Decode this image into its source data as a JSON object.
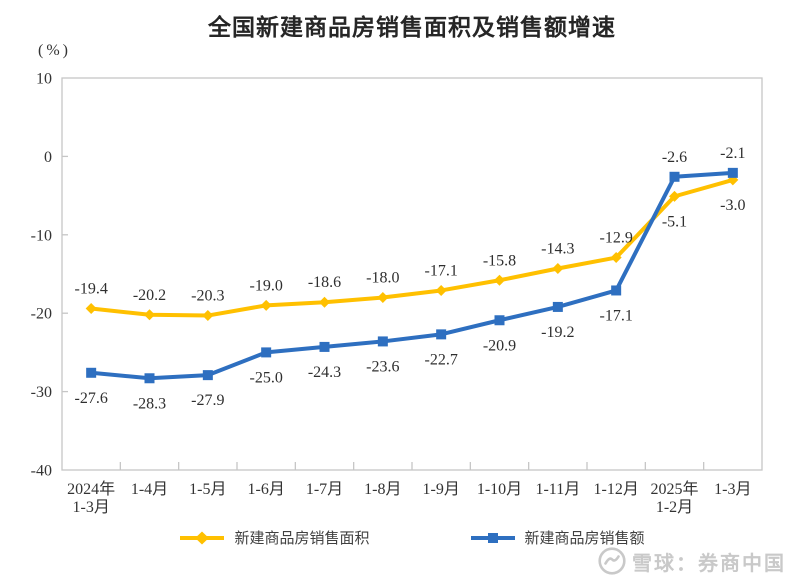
{
  "chart_data": {
    "type": "line",
    "title": "全国新建商品房销售面积及销售额增速",
    "unit_label": "(%)",
    "categories": [
      "2024年\n1-3月",
      "1-4月",
      "1-5月",
      "1-6月",
      "1-7月",
      "1-8月",
      "1-9月",
      "1-10月",
      "1-11月",
      "1-12月",
      "2025年\n1-2月",
      "1-3月"
    ],
    "series": [
      {
        "name": "新建商品房销售面积",
        "color": "#FFC000",
        "marker": "diamond",
        "values": [
          -19.4,
          -20.2,
          -20.3,
          -19.0,
          -18.6,
          -18.0,
          -17.1,
          -15.8,
          -14.3,
          -12.9,
          -5.1,
          -3.0
        ],
        "label_position": "above",
        "label_overrides": {
          "10": "below",
          "11": "below"
        }
      },
      {
        "name": "新建商品房销售额",
        "color": "#2E6FC0",
        "marker": "square",
        "values": [
          -27.6,
          -28.3,
          -27.9,
          -25.0,
          -24.3,
          -23.6,
          -22.7,
          -20.9,
          -19.2,
          -17.1,
          -2.6,
          -2.1
        ],
        "label_position": "below",
        "label_overrides": {
          "10": "above",
          "11": "above"
        }
      }
    ],
    "ylim": [
      -40,
      10
    ],
    "yticks": [
      10,
      0,
      -10,
      -20,
      -30,
      -40
    ],
    "grid": false,
    "legend_position": "bottom",
    "axis_color": "#c6c6c6",
    "text_color": "#333333"
  },
  "watermark": {
    "text": "雪球：券商中国"
  }
}
